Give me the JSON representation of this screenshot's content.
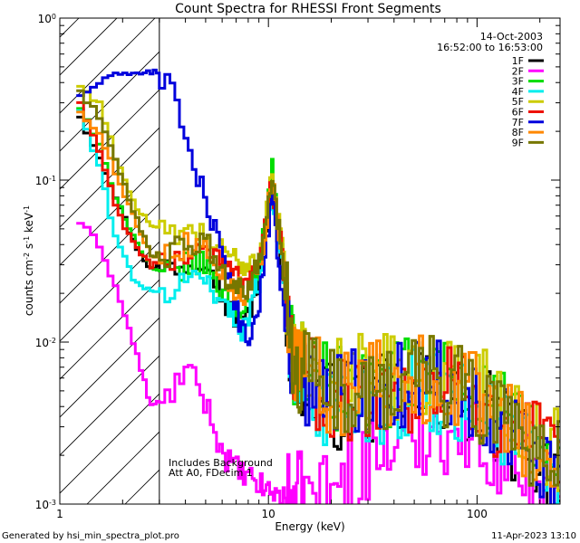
{
  "chart_data": {
    "type": "line",
    "title": "Count Spectra for RHESSI Front Segments",
    "xlabel": "Energy (keV)",
    "ylabel_main": "counts cm",
    "ylabel_e1": "-2",
    "ylabel_mid": " s",
    "ylabel_e2": "-1",
    "ylabel_tail": " keV",
    "ylabel_e3": "-1",
    "x_scale": "log",
    "y_scale": "log",
    "xlim": [
      1,
      250
    ],
    "ylim": [
      0.001,
      1
    ],
    "x_ticks": [
      {
        "value": 1,
        "label": "1"
      },
      {
        "value": 10,
        "label": "10"
      },
      {
        "value": 100,
        "label": "100"
      }
    ],
    "y_ticks": [
      {
        "value": 1,
        "base": "10",
        "exp": "0"
      },
      {
        "value": 0.1,
        "base": "10",
        "exp": "-1"
      },
      {
        "value": 0.01,
        "base": "10",
        "exp": "-2"
      },
      {
        "value": 0.001,
        "base": "10",
        "exp": "-3"
      }
    ],
    "date": "14-Oct-2003",
    "time_range": "16:52:00 to 16:53:00",
    "annotations": [
      "Includes Background",
      "Att A0, FDecim 1"
    ],
    "footer_left": "Generated by hsi_min_spectra_plot.pro",
    "footer_right": "11-Apr-2023 13:10",
    "hatched_region_keV": [
      1,
      3
    ],
    "legend_position": "top-right",
    "series": [
      {
        "name": "1F",
        "color": "#000000"
      },
      {
        "name": "2F",
        "color": "#ff00ff"
      },
      {
        "name": "3F",
        "color": "#00dd00"
      },
      {
        "name": "4F",
        "color": "#00eeee"
      },
      {
        "name": "5F",
        "color": "#cccc00"
      },
      {
        "name": "6F",
        "color": "#ee1100"
      },
      {
        "name": "7F",
        "color": "#0000dd"
      },
      {
        "name": "8F",
        "color": "#ff8800"
      },
      {
        "name": "9F",
        "color": "#777700"
      }
    ],
    "anchor_points": [
      {
        "x": [
          1.2,
          1.5,
          1.8,
          2.2,
          2.7,
          3.2,
          4,
          5,
          6,
          7.5,
          9,
          10.3,
          11.5,
          13,
          20,
          40,
          60,
          100,
          150,
          240
        ],
        "y": [
          0.25,
          0.14,
          0.08,
          0.042,
          0.028,
          0.03,
          0.03,
          0.035,
          0.018,
          0.012,
          0.025,
          0.09,
          0.03,
          0.007,
          0.004,
          0.0045,
          0.005,
          0.004,
          0.0025,
          0.0015
        ]
      },
      {
        "x": [
          1.2,
          1.5,
          1.8,
          2.2,
          2.7,
          3.2,
          4,
          5,
          6,
          7.5,
          9,
          10.3,
          11.5,
          13,
          20,
          40,
          60,
          100,
          150,
          240
        ],
        "y": [
          0.055,
          0.04,
          0.022,
          0.01,
          0.004,
          0.0045,
          0.007,
          0.004,
          0.002,
          0.0015,
          0.0013,
          0.0012,
          0.0011,
          0.0011,
          0.0012,
          0.0025,
          0.003,
          0.0025,
          0.0018,
          0.0012
        ]
      },
      {
        "x": [
          1.2,
          1.5,
          1.8,
          2.2,
          2.7,
          3.2,
          4,
          5,
          6,
          7.5,
          9,
          10.3,
          11.5,
          13,
          20,
          40,
          60,
          100,
          150,
          240
        ],
        "y": [
          0.28,
          0.16,
          0.08,
          0.045,
          0.028,
          0.026,
          0.03,
          0.03,
          0.02,
          0.015,
          0.03,
          0.12,
          0.035,
          0.008,
          0.005,
          0.0055,
          0.0065,
          0.005,
          0.003,
          0.0018
        ]
      },
      {
        "x": [
          1.2,
          1.5,
          1.8,
          2.2,
          2.7,
          3.2,
          4,
          5,
          6,
          7.5,
          9,
          10.3,
          11.5,
          13,
          20,
          40,
          60,
          100,
          150,
          240
        ],
        "y": [
          0.27,
          0.12,
          0.045,
          0.025,
          0.02,
          0.02,
          0.025,
          0.025,
          0.017,
          0.012,
          0.025,
          0.09,
          0.03,
          0.006,
          0.004,
          0.0045,
          0.005,
          0.004,
          0.0025,
          0.0015
        ]
      },
      {
        "x": [
          1.2,
          1.5,
          1.8,
          2.2,
          2.7,
          3.2,
          4,
          5,
          6,
          7.5,
          9,
          10.3,
          11.5,
          13,
          20,
          40,
          60,
          100,
          150,
          240
        ],
        "y": [
          0.38,
          0.3,
          0.14,
          0.075,
          0.05,
          0.05,
          0.045,
          0.045,
          0.035,
          0.03,
          0.035,
          0.1,
          0.04,
          0.009,
          0.006,
          0.006,
          0.007,
          0.0055,
          0.0035,
          0.002
        ]
      },
      {
        "x": [
          1.2,
          1.5,
          1.8,
          2.2,
          2.7,
          3.2,
          4,
          5,
          6,
          7.5,
          9,
          10.3,
          11.5,
          13,
          20,
          40,
          60,
          100,
          150,
          240
        ],
        "y": [
          0.3,
          0.15,
          0.07,
          0.04,
          0.03,
          0.03,
          0.035,
          0.04,
          0.03,
          0.025,
          0.03,
          0.1,
          0.035,
          0.007,
          0.0045,
          0.005,
          0.0055,
          0.0045,
          0.003,
          0.0017
        ]
      },
      {
        "x": [
          1.2,
          1.5,
          1.8,
          2.2,
          2.7,
          3.2,
          3.6,
          4,
          5,
          6,
          7,
          8,
          9,
          10.3,
          11.5,
          13,
          20,
          40,
          60,
          100,
          150,
          240
        ],
        "y": [
          0.33,
          0.4,
          0.44,
          0.46,
          0.47,
          0.42,
          0.3,
          0.16,
          0.07,
          0.03,
          0.015,
          0.01,
          0.018,
          0.08,
          0.02,
          0.006,
          0.005,
          0.0055,
          0.006,
          0.0045,
          0.003,
          0.0016
        ]
      },
      {
        "x": [
          1.2,
          1.5,
          1.8,
          2.2,
          2.7,
          3.2,
          4,
          5,
          6,
          7.5,
          9,
          10.3,
          11.5,
          13,
          20,
          40,
          60,
          100,
          150,
          240
        ],
        "y": [
          0.26,
          0.2,
          0.11,
          0.06,
          0.035,
          0.035,
          0.04,
          0.04,
          0.025,
          0.02,
          0.03,
          0.1,
          0.035,
          0.007,
          0.005,
          0.0055,
          0.006,
          0.0045,
          0.003,
          0.0017
        ]
      },
      {
        "x": [
          1.2,
          1.5,
          1.8,
          2.2,
          2.7,
          3.2,
          4,
          5,
          6,
          7.5,
          9,
          10.3,
          11.5,
          13,
          20,
          40,
          60,
          100,
          150,
          240
        ],
        "y": [
          0.35,
          0.25,
          0.13,
          0.065,
          0.035,
          0.035,
          0.04,
          0.04,
          0.025,
          0.02,
          0.03,
          0.1,
          0.035,
          0.007,
          0.005,
          0.0055,
          0.006,
          0.0045,
          0.003,
          0.0017
        ]
      }
    ]
  }
}
